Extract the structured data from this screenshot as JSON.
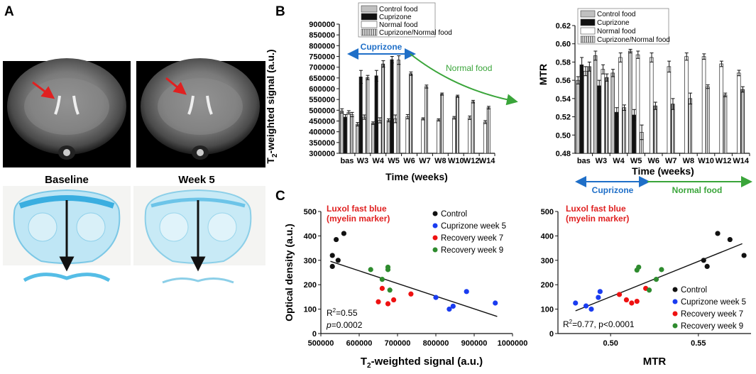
{
  "panels": {
    "a": "A",
    "b": "B",
    "c": "C"
  },
  "panel_a": {
    "mri_left_label": "Baseline",
    "mri_right_label": "Week 5"
  },
  "legend_b": [
    "Control food",
    "Cuprizone",
    "Normal food",
    "Cuprizone/Normal food"
  ],
  "colors": {
    "control": "#c0c0c0",
    "cuprizone": "#111111",
    "normal": "#ffffff",
    "blue": "#1f6fc8",
    "green": "#3aa53a",
    "red": "#e02020",
    "dot_blue": "#1a3cf0",
    "dot_green": "#2e8b2e",
    "dot_red": "#ee1111"
  },
  "chart_data": [
    {
      "id": "b_left",
      "type": "bar",
      "ylabel_pre": "T",
      "ylabel_sub": "2",
      "ylabel_post": "-weighted signal (a.u.)",
      "xlabel": "Time (weeks)",
      "categories": [
        "bas",
        "W3",
        "W4",
        "W5",
        "W6",
        "W7",
        "W8",
        "W10",
        "W12",
        "W14"
      ],
      "ylim": [
        300000,
        900000
      ],
      "yticks": [
        "300000",
        "350000",
        "400000",
        "450000",
        "500000",
        "550000",
        "600000",
        "650000",
        "700000",
        "750000",
        "800000",
        "850000",
        "900000"
      ],
      "series": [
        {
          "name": "Control food",
          "values": [
            497000,
            435000,
            440000,
            453000,
            null,
            null,
            null,
            null,
            null,
            null
          ]
        },
        {
          "name": "Cuprizone",
          "values": [
            468000,
            655000,
            660000,
            735000,
            null,
            null,
            null,
            null,
            null,
            null
          ]
        },
        {
          "name": "Normal food",
          "values": [
            490000,
            468000,
            453000,
            460000,
            470000,
            460000,
            455000,
            465000,
            465000,
            445000
          ]
        },
        {
          "name": "Cuprizone/Normal food",
          "values": [
            480000,
            652000,
            715000,
            733000,
            670000,
            610000,
            575000,
            565000,
            540000,
            512000
          ]
        }
      ],
      "errors": [
        [
          10000,
          8000,
          6000,
          7000
        ],
        [
          12000,
          30000,
          25000,
          15000
        ],
        [
          8000,
          10000,
          12000,
          18000,
          10000,
          5000,
          5000,
          6000,
          8000,
          7000
        ],
        [
          10000,
          10000,
          15000,
          20000,
          8000,
          7000,
          5000,
          5000,
          6000,
          6000
        ]
      ],
      "annotations": {
        "cuprizone": "Cuprizone",
        "normal": "Normal food"
      }
    },
    {
      "id": "b_right",
      "type": "bar",
      "ylabel": "MTR",
      "xlabel": "Time (weeks)",
      "categories": [
        "bas",
        "W3",
        "W4",
        "W5",
        "W6",
        "W7",
        "W8",
        "W10",
        "W12",
        "W14"
      ],
      "ylim": [
        0.48,
        0.62
      ],
      "yticks": [
        "0.48",
        "0.50",
        "0.52",
        "0.54",
        "0.56",
        "0.58",
        "0.60",
        "0.62"
      ],
      "series": [
        {
          "name": "Control food",
          "values": [
            0.56,
            0.587,
            0.568,
            0.592,
            null,
            null,
            null,
            null,
            null,
            null
          ]
        },
        {
          "name": "Cuprizone",
          "values": [
            0.577,
            0.554,
            0.525,
            0.522,
            null,
            null,
            null,
            null,
            null,
            null
          ]
        },
        {
          "name": "Normal food",
          "values": [
            0.57,
            0.572,
            0.585,
            0.588,
            0.585,
            0.575,
            0.586,
            0.586,
            0.578,
            0.568
          ]
        },
        {
          "name": "Cuprizone/Normal food",
          "values": [
            0.575,
            0.563,
            0.53,
            0.503,
            0.532,
            0.534,
            0.54,
            0.553,
            0.544,
            0.55
          ]
        }
      ],
      "errors": [
        [
          0.004,
          0.005,
          0.004,
          0.002
        ],
        [
          0.008,
          0.006,
          0.005,
          0.006
        ],
        [
          0.005,
          0.005,
          0.005,
          0.004,
          0.005,
          0.006,
          0.004,
          0.003,
          0.003,
          0.003
        ],
        [
          0.005,
          0.004,
          0.003,
          0.008,
          0.004,
          0.006,
          0.006,
          0.002,
          0.002,
          0.003
        ]
      ],
      "annotations": {
        "cuprizone": "Cuprizone",
        "normal": "Normal food"
      }
    },
    {
      "id": "c_left",
      "type": "scatter",
      "title_lines": [
        "Luxol fast blue",
        "(myelin marker)"
      ],
      "xlabel_pre": "T",
      "xlabel_sub": "2",
      "xlabel_post": "-weighted signal (a.u.)",
      "ylabel": "Optical density (a.u.)",
      "xlim": [
        500000,
        1000000
      ],
      "ylim": [
        0,
        500
      ],
      "xticks": [
        "500000",
        "600000",
        "700000",
        "800000",
        "900000",
        "1000000"
      ],
      "yticks": [
        "0",
        "100",
        "200",
        "300",
        "400",
        "500"
      ],
      "legend": [
        "Control",
        "Cuprizone week 5",
        "Recovery week 7",
        "Recovery week 9"
      ],
      "series": [
        {
          "name": "Control",
          "points": [
            [
              530000,
              320
            ],
            [
              530000,
              275
            ],
            [
              540000,
              385
            ],
            [
              560000,
              410
            ],
            [
              545000,
              300
            ]
          ]
        },
        {
          "name": "Cuprizone week 5",
          "points": [
            [
              800000,
              148
            ],
            [
              835000,
              100
            ],
            [
              845000,
              112
            ],
            [
              880000,
              172
            ],
            [
              955000,
              125
            ]
          ]
        },
        {
          "name": "Recovery week 7",
          "points": [
            [
              650000,
              130
            ],
            [
              660000,
              185
            ],
            [
              675000,
              122
            ],
            [
              690000,
              138
            ],
            [
              735000,
              162
            ]
          ]
        },
        {
          "name": "Recovery week 9",
          "points": [
            [
              630000,
              262
            ],
            [
              660000,
              222
            ],
            [
              675000,
              262
            ],
            [
              675000,
              272
            ],
            [
              680000,
              178
            ]
          ]
        }
      ],
      "fit": {
        "x": [
          525000,
          960000
        ],
        "y": [
          296,
          70
        ]
      },
      "stats": {
        "r2": "=0.55",
        "p": "=0.0002"
      }
    },
    {
      "id": "c_right",
      "type": "scatter",
      "title_lines": [
        "Luxol fast blue",
        "(myelin marker)"
      ],
      "xlabel": "MTR",
      "xlim": [
        0.47,
        0.58
      ],
      "ylim": [
        0,
        500
      ],
      "xticks": [
        "0.50",
        "0.55"
      ],
      "yticks": [
        "0",
        "100",
        "200",
        "300",
        "400",
        "500"
      ],
      "legend": [
        "Control",
        "Cuprizone week 5",
        "Recovery week 7",
        "Recovery week 9"
      ],
      "series": [
        {
          "name": "Control",
          "points": [
            [
              0.553,
              300
            ],
            [
              0.555,
              275
            ],
            [
              0.561,
              410
            ],
            [
              0.568,
              385
            ],
            [
              0.576,
              320
            ]
          ]
        },
        {
          "name": "Cuprizone week 5",
          "points": [
            [
              0.48,
              125
            ],
            [
              0.486,
              113
            ],
            [
              0.489,
              100
            ],
            [
              0.493,
              148
            ],
            [
              0.494,
              172
            ]
          ]
        },
        {
          "name": "Recovery week 7",
          "points": [
            [
              0.505,
              160
            ],
            [
              0.509,
              138
            ],
            [
              0.512,
              125
            ],
            [
              0.515,
              132
            ],
            [
              0.52,
              185
            ]
          ]
        },
        {
          "name": "Recovery week 9",
          "points": [
            [
              0.515,
              260
            ],
            [
              0.516,
              272
            ],
            [
              0.522,
              178
            ],
            [
              0.526,
              222
            ],
            [
              0.529,
              262
            ]
          ]
        }
      ],
      "fit": {
        "x": [
          0.48,
          0.575
        ],
        "y": [
          93,
          368
        ]
      },
      "stats": {
        "r2": "=0.77, p<0.0001"
      }
    }
  ]
}
